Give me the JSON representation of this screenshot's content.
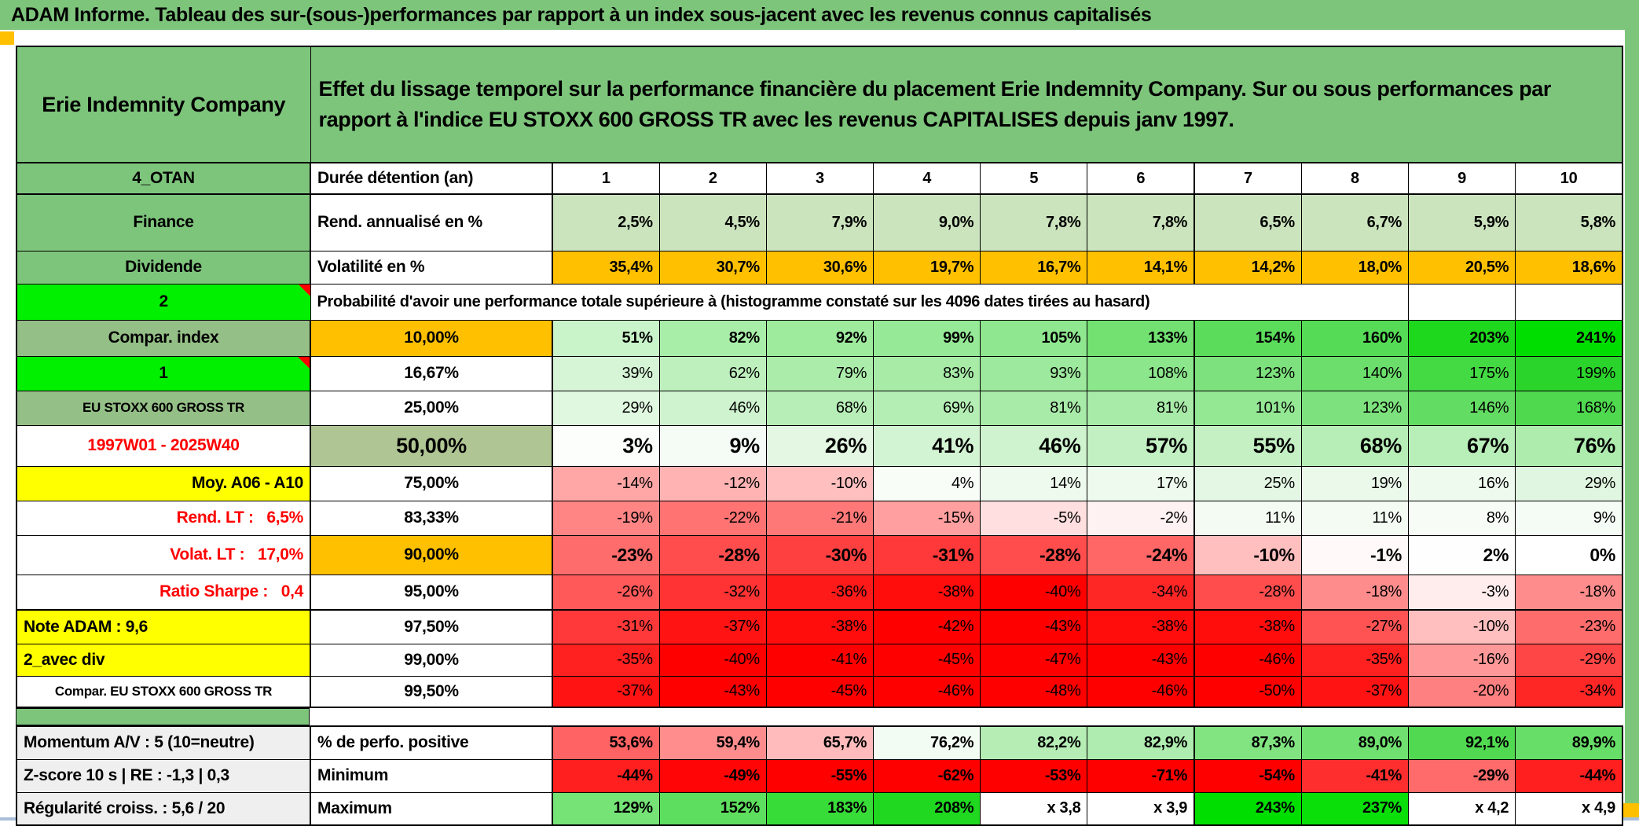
{
  "window": {
    "title": "ADAM Informe. Tableau des sur-(sous-)performances par rapport à un index sous-jacent avec les revenus connus capitalisés",
    "accent_orange": "#FFC000",
    "frame_green": "#7EC57C"
  },
  "header": {
    "company": "Erie Indemnity Company",
    "description": "Effet du lissage temporel sur la performance financière du placement Erie Indemnity Company. Sur ou sous performances par rapport à l'indice EU STOXX 600 GROSS TR avec les revenus CAPITALISES depuis janv 1997."
  },
  "table": {
    "rows": [
      {
        "a": "4_OTAN",
        "aBg": "#7EC57C",
        "b": "Durée détention (an)",
        "bBg": "#FFFFFF",
        "cells": [
          "1",
          "2",
          "3",
          "4",
          "5",
          "6",
          "7",
          "8",
          "9",
          "10"
        ],
        "cellBg": "#FFFFFF"
      },
      {
        "a": "Finance",
        "aBg": "#7EC57C",
        "b": "Rend. annualisé en %",
        "bBg": "#FFFFFF",
        "cells": [
          "2,5%",
          "4,5%",
          "7,9%",
          "9,0%",
          "7,8%",
          "7,8%",
          "6,5%",
          "6,7%",
          "5,9%",
          "5,8%"
        ],
        "cellBg": "#CBE4BD"
      },
      {
        "a": "Dividende",
        "aBg": "#7EC57C",
        "b": "Volatilité en %",
        "bBg": "#FFFFFF",
        "cells": [
          "35,4%",
          "30,7%",
          "30,6%",
          "19,7%",
          "16,7%",
          "14,1%",
          "14,2%",
          "18,0%",
          "20,5%",
          "18,6%"
        ],
        "cellBg": "#FFC000"
      },
      {
        "a": "2",
        "aBg": "#00F000",
        "text": "Probabilité d'avoir une performance totale supérieure à (histogramme constaté sur les 4096 dates tirées au hasard)"
      },
      {
        "a": "Compar. index",
        "aBg": "#94BF86",
        "b": "10,00%",
        "bBg": "#FFC000",
        "cells": [
          "51%",
          "82%",
          "92%",
          "99%",
          "105%",
          "133%",
          "154%",
          "160%",
          "203%",
          "241%"
        ],
        "cellBg": [
          "#C9F3C9",
          "#A8EDA8",
          "#9EEB9E",
          "#96E996",
          "#8FE78F",
          "#72E172",
          "#5BDC5B",
          "#55DB55",
          "#1ED81E",
          "#00DE00"
        ]
      },
      {
        "a": "1",
        "aBg": "#00F000",
        "b": "16,67%",
        "bBg": "#FFFFFF",
        "cells": [
          "39%",
          "62%",
          "79%",
          "83%",
          "93%",
          "108%",
          "123%",
          "140%",
          "175%",
          "199%"
        ],
        "cellBg": [
          "#D6F5D6",
          "#BDF0BD",
          "#ABECAB",
          "#A7EBA7",
          "#9DE99D",
          "#8CE68C",
          "#7DE27D",
          "#6BDE6B",
          "#43DA43",
          "#2BD42B"
        ]
      },
      {
        "a": "EU STOXX 600 GROSS TR",
        "aBg": "#94BF86",
        "b": "25,00%",
        "bBg": "#FFFFFF",
        "cells": [
          "29%",
          "46%",
          "68%",
          "69%",
          "81%",
          "81%",
          "101%",
          "123%",
          "146%",
          "168%"
        ],
        "cellBg": [
          "#E0F7E0",
          "#CFF3CF",
          "#B7EEB7",
          "#B5EEB5",
          "#A8EBA8",
          "#A8EBA8",
          "#94E894",
          "#7DE27D",
          "#63DC63",
          "#4FD94F"
        ]
      },
      {
        "a": "1997W01 - 2025W40",
        "aBg": "#FFFFFF",
        "aColor": "#FF0000",
        "b": "50,00%",
        "bBg": "#AFC593",
        "cells": [
          "3%",
          "9%",
          "26%",
          "41%",
          "46%",
          "57%",
          "55%",
          "68%",
          "67%",
          "76%"
        ],
        "cellBg": [
          "#FBFEFB",
          "#F5FCF5",
          "#E3F7E3",
          "#D3F4D3",
          "#CFF3CF",
          "#C2F0C2",
          "#C4F0C4",
          "#B7EEB7",
          "#B8EEB8",
          "#AEECAE"
        ]
      },
      {
        "a": "Moy. A06 - A10",
        "aBg": "#FFFF00",
        "b": "75,00%",
        "bBg": "#FFFFFF",
        "cells": [
          "-14%",
          "-12%",
          "-10%",
          "4%",
          "14%",
          "17%",
          "25%",
          "19%",
          "16%",
          "29%"
        ],
        "cellBg": [
          "#FFA6A6",
          "#FFB3B3",
          "#FFBFBF",
          "#F8FDF8",
          "#EFFAEF",
          "#EDFAED",
          "#E4F7E4",
          "#EBF9EB",
          "#EEFAEE",
          "#E0F6E0"
        ]
      },
      {
        "a": "Rend. LT :   6,5%",
        "aBg": "#FFFFFF",
        "aColor": "#FF0000",
        "b": "83,33%",
        "bBg": "#FFFFFF",
        "cells": [
          "-19%",
          "-22%",
          "-21%",
          "-15%",
          "-5%",
          "-2%",
          "11%",
          "11%",
          "8%",
          "9%"
        ],
        "cellBg": [
          "#FF8585",
          "#FF7373",
          "#FF7878",
          "#FF9F9F",
          "#FFDFDF",
          "#FFF2F2",
          "#F3FBF3",
          "#F3FBF3",
          "#F7FCF7",
          "#F5FCF5"
        ]
      },
      {
        "a": "Volat. LT :   17,0%",
        "aBg": "#FFFFFF",
        "aColor": "#FF0000",
        "b": "90,00%",
        "bBg": "#FFC000",
        "cells": [
          "-23%",
          "-28%",
          "-30%",
          "-31%",
          "-28%",
          "-24%",
          "-10%",
          "-1%",
          "2%",
          "0%"
        ],
        "cellBg": [
          "#FF6C6C",
          "#FF4D4D",
          "#FF4040",
          "#FF3939",
          "#FF4D4D",
          "#FF6666",
          "#FFBFBF",
          "#FFF9F9",
          "#FDFEFD",
          "#FFFFFF"
        ]
      },
      {
        "a": "Ratio Sharpe :   0,4",
        "aBg": "#FFFFFF",
        "aColor": "#FF0000",
        "b": "95,00%",
        "bBg": "#FFFFFF",
        "cells": [
          "-26%",
          "-32%",
          "-36%",
          "-38%",
          "-40%",
          "-34%",
          "-28%",
          "-18%",
          "-3%",
          "-18%"
        ],
        "cellBg": [
          "#FF5959",
          "#FF3333",
          "#FF1A1A",
          "#FF0D0D",
          "#FF0000",
          "#FF2626",
          "#FF4D4D",
          "#FF8C8C",
          "#FFECEC",
          "#FF8C8C"
        ]
      },
      {
        "a": "Note ADAM : 9,6",
        "aBg": "#FFFF00",
        "b": "97,50%",
        "bBg": "#FFFFFF",
        "cells": [
          "-31%",
          "-37%",
          "-38%",
          "-42%",
          "-43%",
          "-38%",
          "-38%",
          "-27%",
          "-10%",
          "-23%"
        ],
        "cellBg": [
          "#FF3939",
          "#FF1313",
          "#FF0D0D",
          "#FF0000",
          "#FF0000",
          "#FF0D0D",
          "#FF0D0D",
          "#FF5353",
          "#FFBFBF",
          "#FF6C6C"
        ]
      },
      {
        "a": "2_avec div",
        "aBg": "#FFFF00",
        "b": "99,00%",
        "bBg": "#FFFFFF",
        "cells": [
          "-35%",
          "-40%",
          "-41%",
          "-45%",
          "-47%",
          "-43%",
          "-46%",
          "-35%",
          "-16%",
          "-29%"
        ],
        "cellBg": [
          "#FF2020",
          "#FF0000",
          "#FF0000",
          "#FF0000",
          "#FF0000",
          "#FF0000",
          "#FF0000",
          "#FF2020",
          "#FF9999",
          "#FF4646"
        ]
      },
      {
        "a": "Compar. EU STOXX 600 GROSS TR",
        "aBg": "#FFFFFF",
        "b": "99,50%",
        "bBg": "#FFFFFF",
        "cells": [
          "-37%",
          "-43%",
          "-45%",
          "-46%",
          "-48%",
          "-46%",
          "-50%",
          "-37%",
          "-20%",
          "-34%"
        ],
        "cellBg": [
          "#FF1313",
          "#FF0000",
          "#FF0000",
          "#FF0000",
          "#FF0000",
          "#FF0000",
          "#FF0000",
          "#FF1313",
          "#FF8080",
          "#FF2626"
        ]
      }
    ]
  },
  "footer": {
    "rows": [
      {
        "a": "Momentum A/V : 5 (10=neutre)",
        "aBg": "#EFEFEF",
        "b": "% de perfo. positive",
        "bBg": "#FFFFFF",
        "cells": [
          "53,6%",
          "59,4%",
          "65,7%",
          "76,2%",
          "82,2%",
          "82,9%",
          "87,3%",
          "89,0%",
          "92,1%",
          "89,9%"
        ],
        "cellBg": [
          "#FF6363",
          "#FF8D8D",
          "#FFBBBB",
          "#F3FCF3",
          "#B5EDB5",
          "#AFECAF",
          "#81E481",
          "#70E070",
          "#51DA51",
          "#67DE67"
        ]
      },
      {
        "a": "Z-score 10 s | RE : -1,3 | 0,3",
        "aBg": "#EFEFEF",
        "b": "Minimum",
        "bBg": "#FFFFFF",
        "cells": [
          "-44%",
          "-49%",
          "-55%",
          "-62%",
          "-53%",
          "-71%",
          "-54%",
          "-41%",
          "-29%",
          "-44%"
        ],
        "cellBg": [
          "#FF1F1F",
          "#FF0505",
          "#FF0000",
          "#FF0000",
          "#FF0000",
          "#FF0000",
          "#FF0000",
          "#FF2E2E",
          "#FF6B6B",
          "#FF1F1F"
        ]
      },
      {
        "a": "Régularité croiss. : 5,6 / 20",
        "aBg": "#EFEFEF",
        "b": "Maximum",
        "bBg": "#FFFFFF",
        "cells": [
          "129%",
          "152%",
          "183%",
          "208%",
          "x 3,8",
          "x 3,9",
          "243%",
          "237%",
          "x 4,2",
          "x 4,9"
        ],
        "cellBg": [
          "#75E375",
          "#5EDE5E",
          "#38DC38",
          "#1FD81F",
          "#FFFFFF",
          "#FFFFFF",
          "#00DE00",
          "#0ADF0A",
          "#FFFFFF",
          "#FFFFFF"
        ]
      }
    ]
  }
}
